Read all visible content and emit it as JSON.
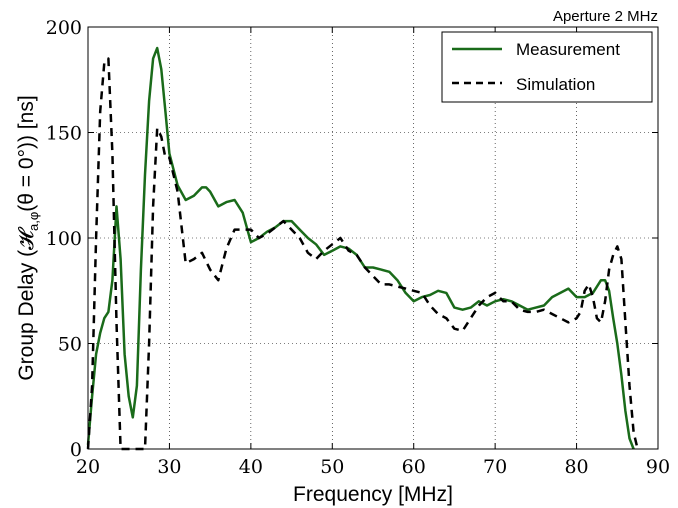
{
  "chart_data": {
    "type": "line",
    "title": "Aperture 2 MHz",
    "xlabel": "Frequency [MHz]",
    "ylabel": "Group Delay (𝓗",
    "ylabel_sub": "a,φ",
    "ylabel_tail": "(θ = 0°)) [ns]",
    "xlim": [
      20,
      90
    ],
    "ylim": [
      0,
      200
    ],
    "xticks": [
      20,
      30,
      40,
      50,
      60,
      70,
      80,
      90
    ],
    "yticks": [
      0,
      50,
      100,
      150,
      200
    ],
    "xtick_labels": [
      "20",
      "30",
      "40",
      "50",
      "60",
      "70",
      "80",
      "90"
    ],
    "ytick_labels": [
      "0",
      "50",
      "100",
      "150",
      "200"
    ],
    "grid": true,
    "legend_position": "top-right",
    "series": [
      {
        "name": "Measurement",
        "color": "#1a6b1a",
        "style": "solid",
        "x": [
          20.0,
          20.5,
          21.0,
          21.5,
          22.0,
          22.5,
          23.0,
          23.5,
          24.0,
          24.5,
          25.0,
          25.5,
          26.0,
          26.5,
          27.0,
          27.5,
          28.0,
          28.5,
          29.0,
          29.5,
          30.0,
          31.0,
          32.0,
          33.0,
          34.0,
          34.5,
          35.0,
          36.0,
          37.0,
          38.0,
          39.0,
          40.0,
          41.0,
          42.0,
          43.0,
          44.0,
          45.0,
          46.0,
          47.0,
          48.0,
          49.0,
          50.0,
          51.0,
          52.0,
          53.0,
          54.0,
          55.0,
          56.0,
          57.0,
          58.0,
          59.0,
          60.0,
          61.0,
          62.0,
          63.0,
          64.0,
          65.0,
          66.0,
          67.0,
          68.0,
          69.0,
          70.0,
          71.0,
          72.0,
          73.0,
          74.0,
          75.0,
          76.0,
          77.0,
          78.0,
          79.0,
          80.0,
          81.0,
          82.0,
          83.0,
          83.5,
          84.0,
          84.5,
          85.0,
          85.5,
          86.0,
          86.5,
          87.0
        ],
        "y": [
          2,
          25,
          45,
          55,
          62,
          65,
          80,
          115,
          90,
          45,
          25,
          15,
          30,
          85,
          130,
          165,
          185,
          190,
          180,
          160,
          140,
          125,
          118,
          120,
          124,
          124,
          122,
          115,
          117,
          118,
          112,
          98,
          100,
          103,
          105,
          108,
          108,
          104,
          100,
          97,
          92,
          94,
          96,
          95,
          92,
          86,
          86,
          85,
          84,
          80,
          74,
          70,
          72,
          73,
          75,
          74,
          67,
          66,
          67,
          70,
          68,
          70,
          71,
          70,
          68,
          66,
          67,
          68,
          72,
          74,
          76,
          72,
          72,
          74,
          80,
          80,
          75,
          62,
          50,
          35,
          18,
          5,
          0
        ]
      },
      {
        "name": "Simulation",
        "color": "#000000",
        "style": "dashed",
        "x": [
          20.0,
          20.5,
          21.0,
          21.5,
          22.0,
          22.5,
          23.0,
          23.5,
          24.0,
          24.5,
          25.0,
          25.5,
          26.0,
          26.5,
          27.0,
          27.5,
          28.0,
          28.5,
          29.0,
          29.5,
          30.0,
          31.0,
          32.0,
          33.0,
          34.0,
          35.0,
          36.0,
          37.0,
          38.0,
          39.0,
          40.0,
          41.0,
          42.0,
          43.0,
          44.0,
          45.0,
          46.0,
          47.0,
          48.0,
          49.0,
          50.0,
          51.0,
          52.0,
          53.0,
          54.0,
          55.0,
          56.0,
          57.0,
          58.0,
          59.0,
          60.0,
          61.0,
          62.0,
          63.0,
          64.0,
          65.0,
          66.0,
          67.0,
          68.0,
          69.0,
          70.0,
          71.0,
          72.0,
          73.0,
          74.0,
          75.0,
          76.0,
          77.0,
          78.0,
          79.0,
          80.0,
          80.5,
          81.0,
          81.5,
          82.0,
          82.5,
          83.0,
          83.5,
          84.0,
          84.5,
          85.0,
          85.5,
          86.0,
          86.5,
          87.0,
          87.5
        ],
        "y": [
          0,
          30,
          100,
          160,
          183,
          185,
          140,
          60,
          0,
          0,
          0,
          0,
          0,
          0,
          0,
          50,
          115,
          152,
          148,
          138,
          138,
          122,
          88,
          90,
          93,
          85,
          80,
          95,
          104,
          104,
          104,
          100,
          102,
          105,
          108,
          104,
          100,
          93,
          90,
          94,
          97,
          100,
          94,
          92,
          86,
          82,
          78,
          78,
          77,
          76,
          75,
          74,
          68,
          64,
          62,
          57,
          56,
          62,
          68,
          72,
          74,
          70,
          70,
          66,
          65,
          65,
          66,
          64,
          62,
          60,
          62,
          65,
          75,
          78,
          72,
          62,
          60,
          70,
          85,
          92,
          96,
          90,
          60,
          30,
          8,
          0
        ]
      }
    ]
  }
}
